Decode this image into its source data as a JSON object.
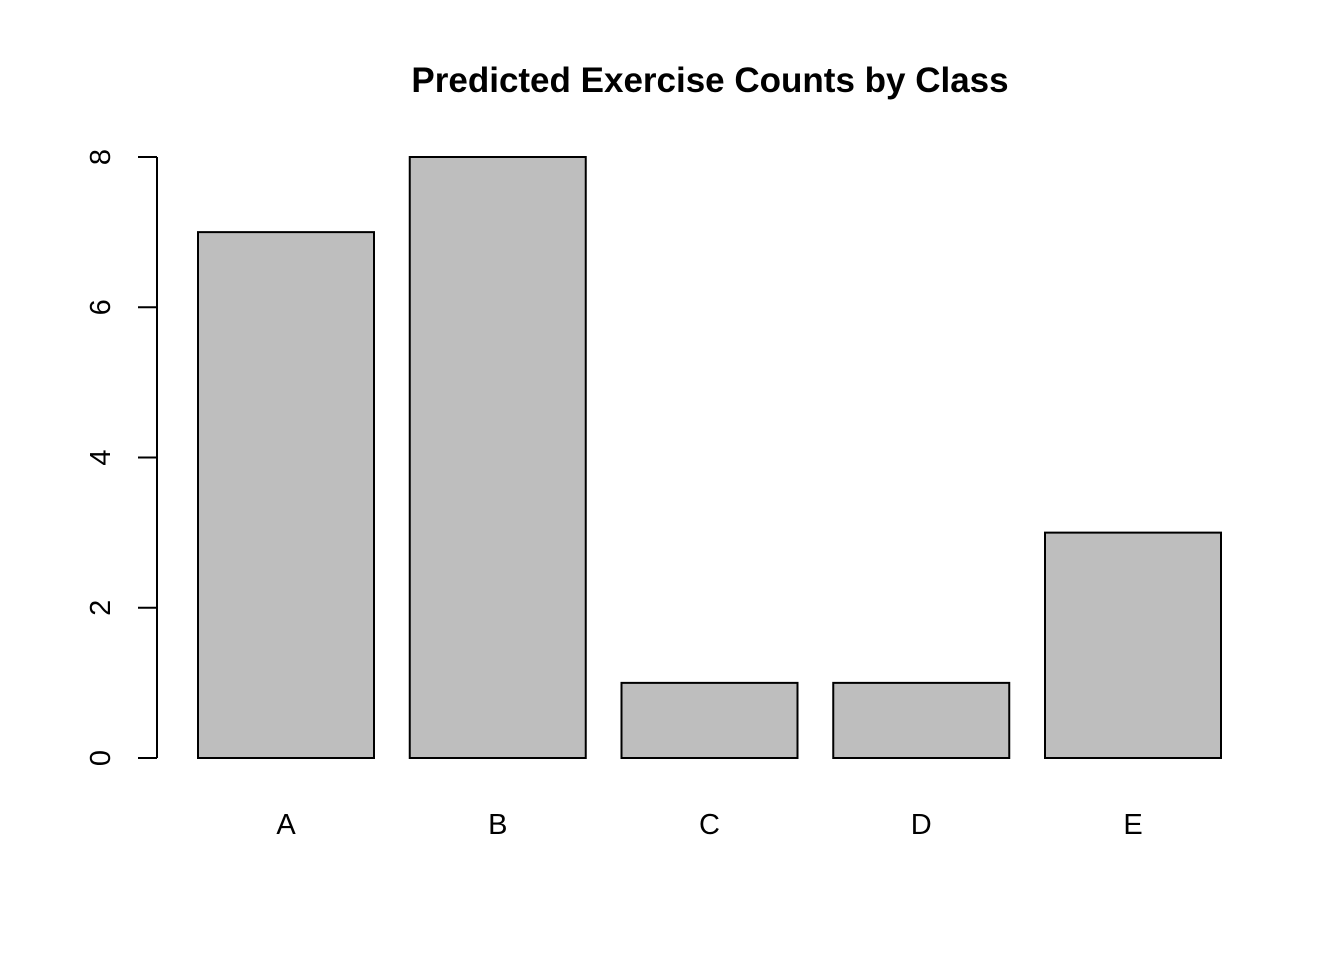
{
  "chart_data": {
    "type": "bar",
    "title": "Predicted Exercise Counts by Class",
    "xlabel": "",
    "ylabel": "",
    "categories": [
      "A",
      "B",
      "C",
      "D",
      "E"
    ],
    "values": [
      7,
      8,
      1,
      1,
      3
    ],
    "ylim": [
      0,
      8
    ],
    "yticks": [
      0,
      2,
      4,
      6,
      8
    ],
    "ytick_labels": [
      "0",
      "2",
      "4",
      "6",
      "8"
    ],
    "bar_color": "#bebebe",
    "grid": false,
    "legend": "none"
  }
}
